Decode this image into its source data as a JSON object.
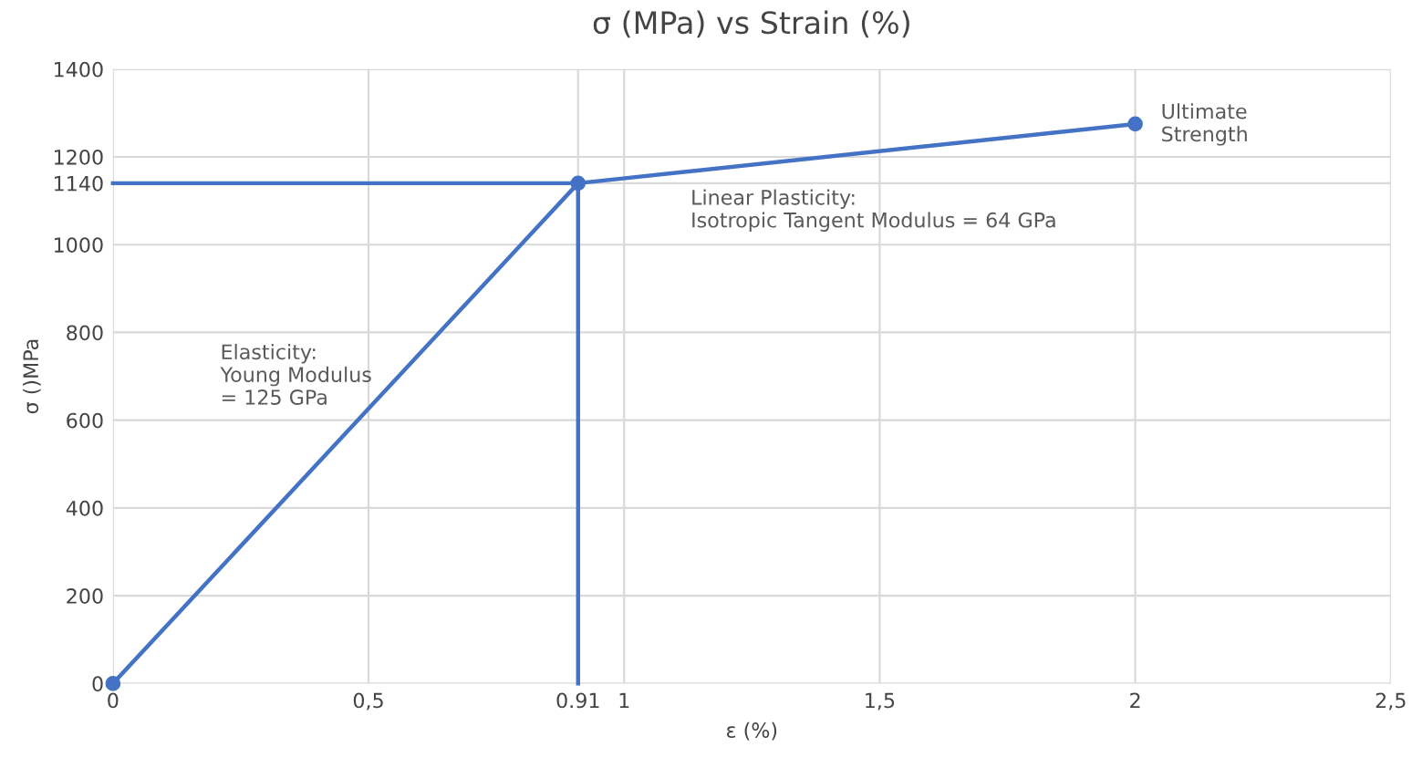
{
  "chart_data": {
    "type": "line",
    "title": "σ (MPa) vs Strain (%)",
    "xlabel": "ε (%)",
    "ylabel": "σ ()MPa",
    "series": [
      {
        "x": [
          0,
          0.91,
          2
        ],
        "values": [
          0,
          1140,
          1275
        ],
        "color": "#4472c4",
        "marker": "circle"
      },
      {
        "x": [
          0,
          0.91
        ],
        "values": [
          1140,
          1140
        ],
        "color": "#4472c4",
        "marker": "none"
      },
      {
        "x": [
          0.91,
          0.91
        ],
        "values": [
          0,
          1140
        ],
        "color": "#4472c4",
        "marker": "none"
      }
    ],
    "xlim": [
      0,
      2.5
    ],
    "ylim": [
      0,
      1400
    ],
    "xticks": [
      0,
      {
        "value": 0.5,
        "label": "0,5"
      },
      {
        "value": 0.91,
        "label": "0.91"
      },
      1,
      {
        "value": 1.5,
        "label": "1,5"
      },
      2,
      {
        "value": 2.5,
        "label": "2,5"
      }
    ],
    "yticks": [
      0,
      200,
      400,
      600,
      800,
      1000,
      1140,
      1200,
      1400
    ],
    "grid": true,
    "annotations": [
      "Elasticity:\nYoung Modulus\n= 125 GPa",
      "Linear Plasticity:\nIsotropic Tangent Modulus = 64 GPa",
      "Ultimate\nStrength"
    ]
  }
}
